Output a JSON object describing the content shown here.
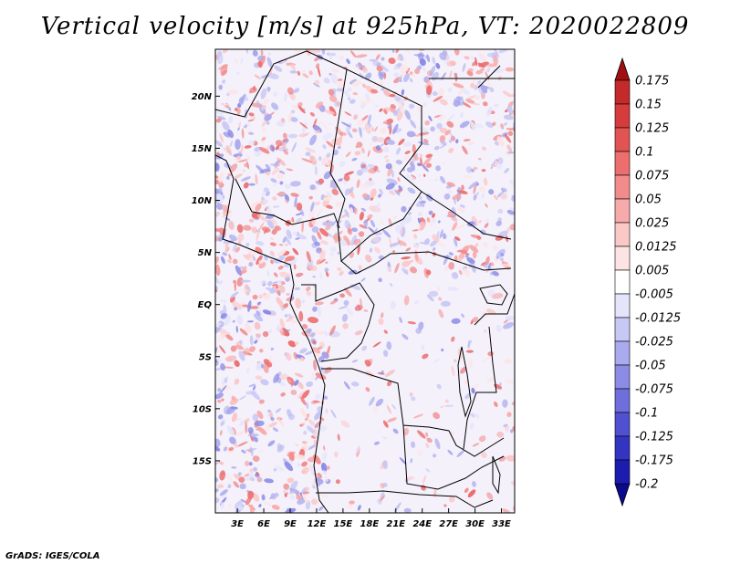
{
  "title": "Vertical velocity [m/s] at 925hPa, VT: 2020022809",
  "credit": "GrADS: IGES/COLA",
  "map": {
    "lat_labels": [
      "20N",
      "15N",
      "10N",
      "5N",
      "EQ",
      "5S",
      "10S",
      "15S"
    ],
    "lat_values": [
      20,
      15,
      10,
      5,
      0,
      -5,
      -10,
      -15
    ],
    "lon_labels": [
      "3E",
      "6E",
      "9E",
      "12E",
      "15E",
      "18E",
      "21E",
      "24E",
      "27E",
      "30E",
      "33E"
    ],
    "lon_values": [
      3,
      6,
      9,
      12,
      15,
      18,
      21,
      24,
      27,
      30,
      33
    ],
    "lat_range": [
      -20,
      24.5
    ],
    "lon_range": [
      0.5,
      34.5
    ]
  },
  "colorbar": {
    "labels": [
      "0.175",
      "0.15",
      "0.125",
      "0.1",
      "0.075",
      "0.05",
      "0.025",
      "0.0125",
      "0.005",
      "-0.005",
      "-0.0125",
      "-0.025",
      "-0.05",
      "-0.075",
      "-0.1",
      "-0.125",
      "-0.175",
      "-0.2"
    ],
    "colors": [
      "#b01c1c",
      "#c42a2a",
      "#d63c3c",
      "#e25454",
      "#ec6e6e",
      "#f28c8c",
      "#f7aaaa",
      "#fbc8c8",
      "#fde4e4",
      "#ffffff",
      "#e4e4fb",
      "#c8c8f4",
      "#aaaaee",
      "#8c8ce6",
      "#6e6edc",
      "#5050d0",
      "#3434c2",
      "#1c1cae",
      "#0a0a96"
    ],
    "arrow_top_color": "#a01010",
    "arrow_bottom_color": "#0a0a8c"
  }
}
